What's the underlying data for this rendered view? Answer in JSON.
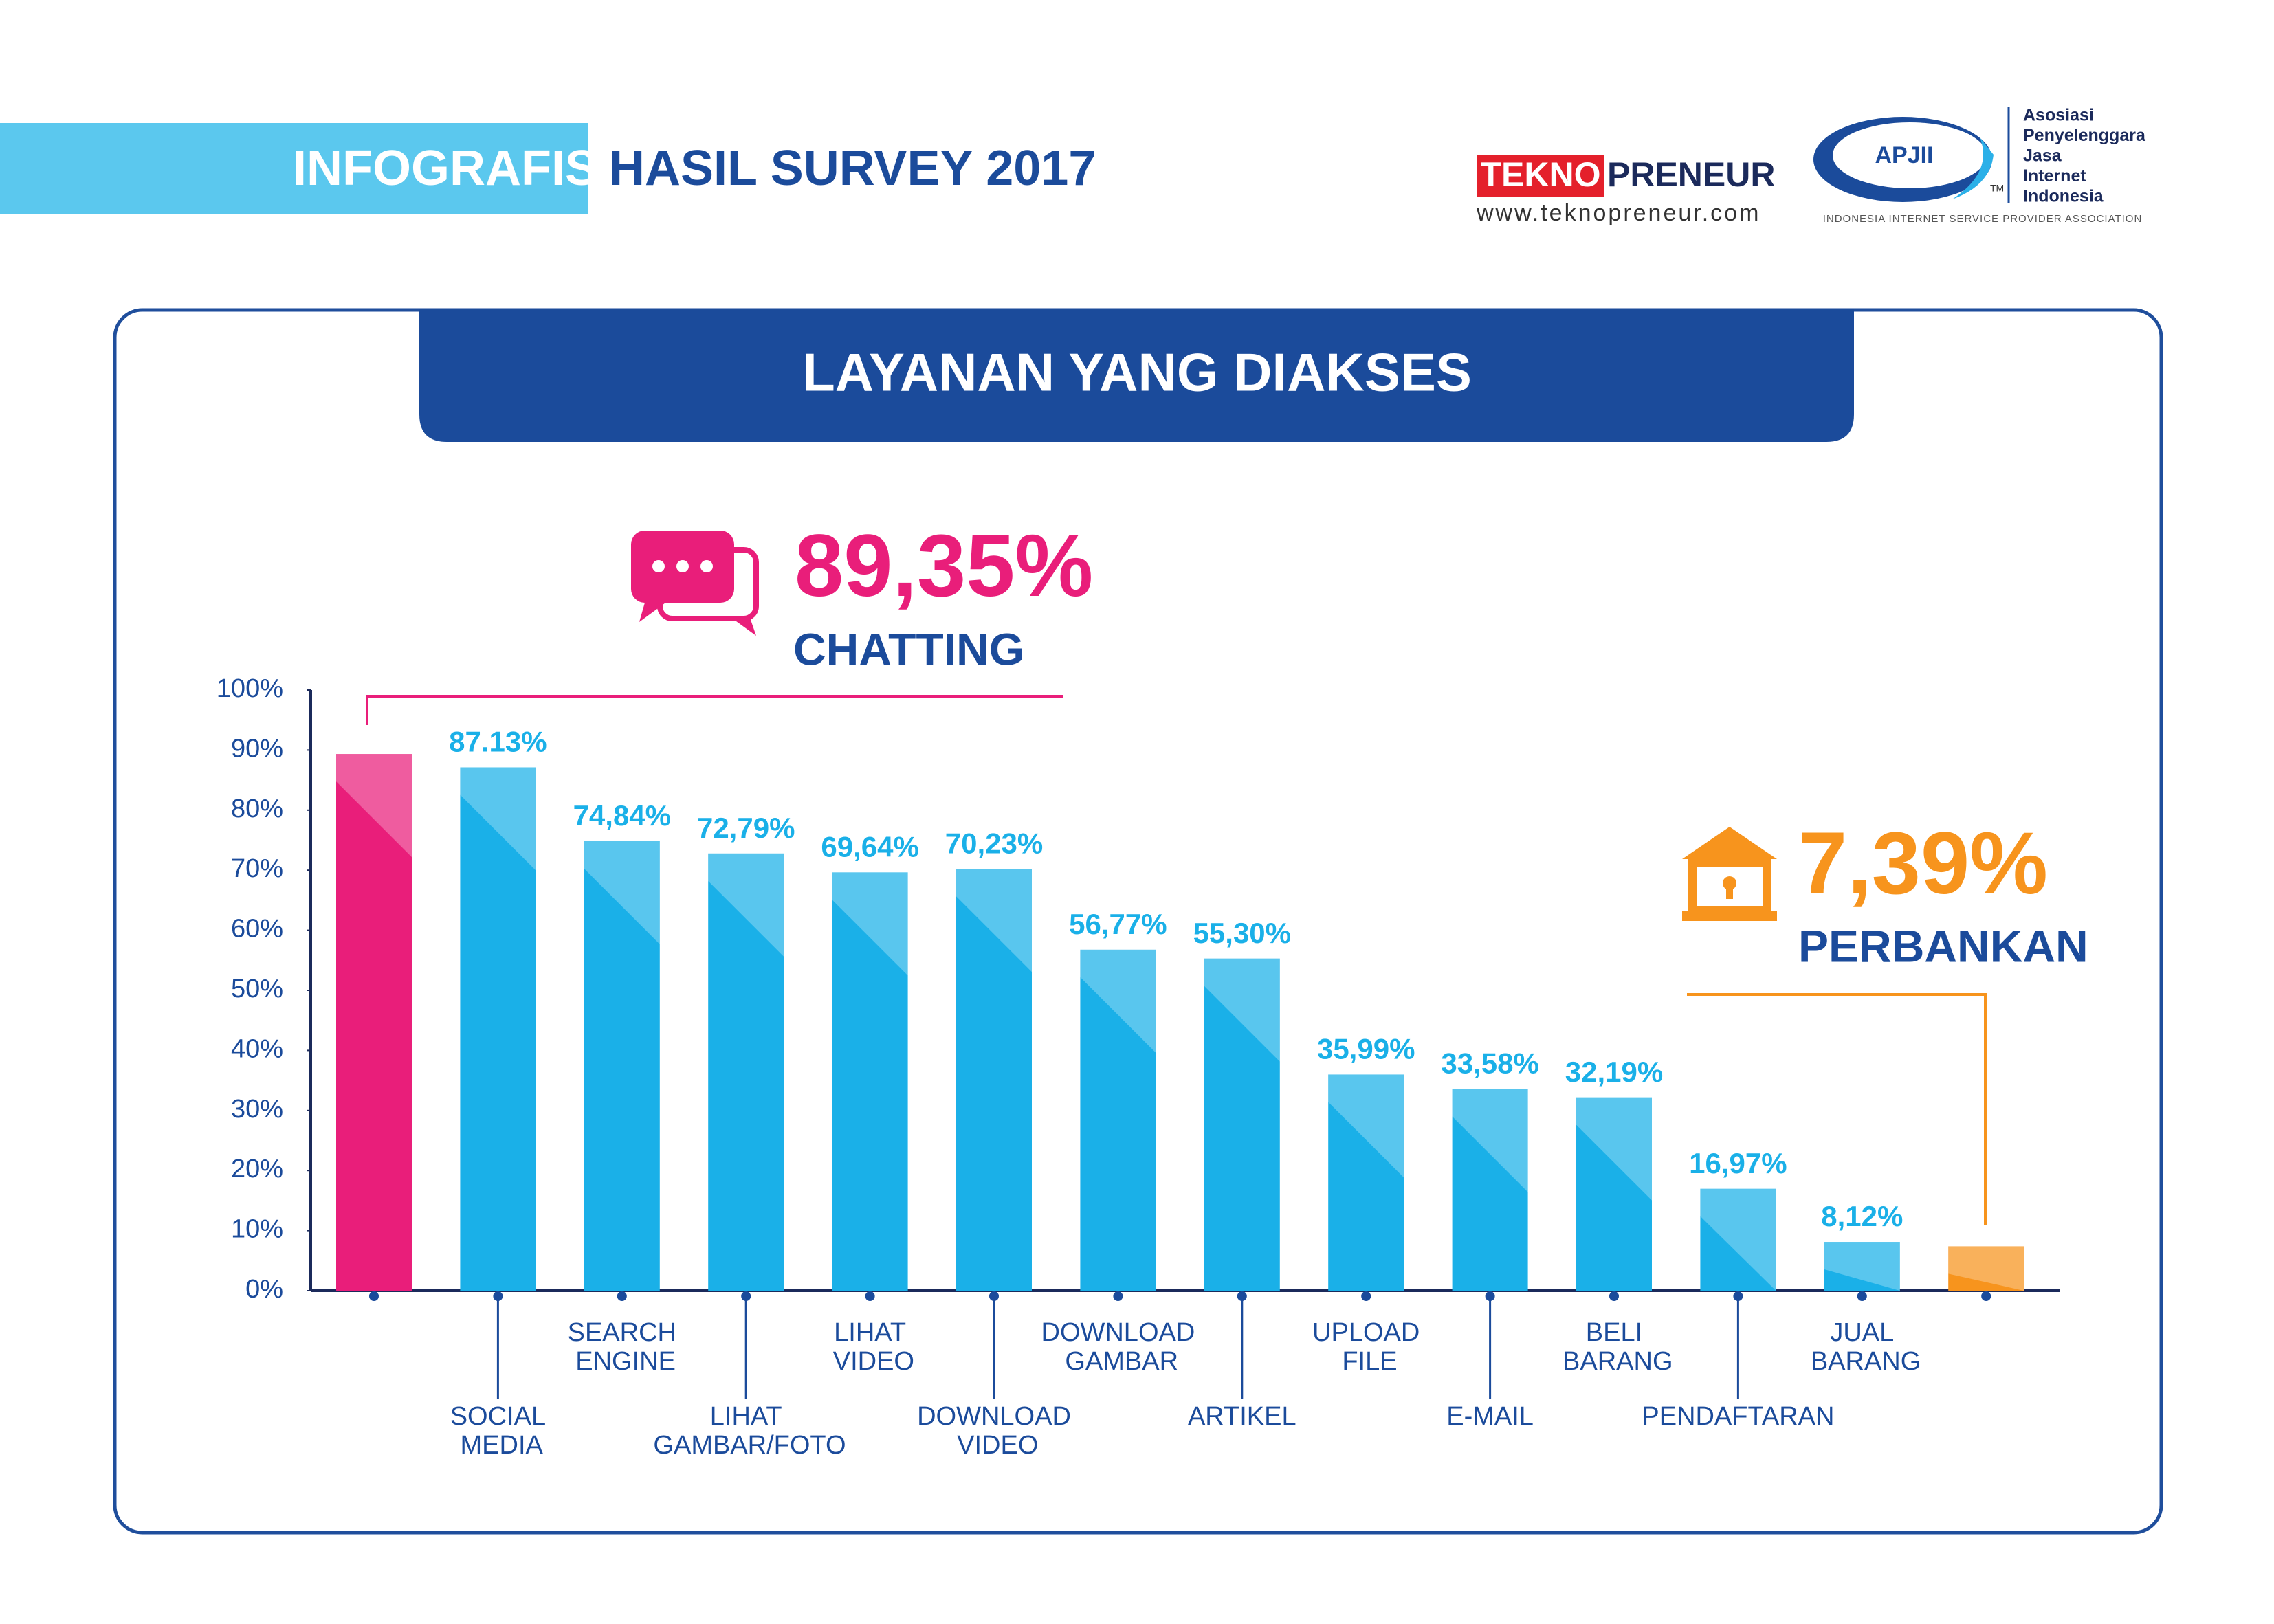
{
  "header": {
    "tag": "INFOGRAFIS",
    "title": "HASIL SURVEY 2017"
  },
  "logos": {
    "teknopreneur": {
      "part1": "TEKNO",
      "part2": "PRENEUR",
      "url": "www.teknopreneur.com"
    },
    "apjii": {
      "name": "APJII",
      "tm": "TM",
      "full_name": [
        "Asosiasi",
        "Penyelenggara",
        "Jasa",
        "Internet",
        "Indonesia"
      ],
      "tagline": "INDONESIA INTERNET SERVICE PROVIDER ASSOCIATION"
    }
  },
  "chart_data": {
    "type": "bar",
    "title": "LAYANAN YANG DIAKSES",
    "categories": [
      "CHATTING",
      "SOCIAL MEDIA",
      "SEARCH ENGINE",
      "LIHAT GAMBAR/FOTO",
      "LIHAT VIDEO",
      "DOWNLOAD VIDEO",
      "DOWNLOAD GAMBAR",
      "ARTIKEL",
      "UPLOAD FILE",
      "E-MAIL",
      "BELI BARANG",
      "PENDAFTARAN",
      "JUAL BARANG",
      "PERBANKAN"
    ],
    "values": [
      89.35,
      87.13,
      74.84,
      72.79,
      69.64,
      70.23,
      56.77,
      55.3,
      35.99,
      33.58,
      32.19,
      16.97,
      8.12,
      7.39
    ],
    "value_labels": [
      "89,35%",
      "87.13%",
      "74,84%",
      "72,79%",
      "69,64%",
      "70,23%",
      "56,77%",
      "55,30%",
      "35,99%",
      "33,58%",
      "32,19%",
      "16,97%",
      "8,12%",
      "7,39%"
    ],
    "colors": [
      "#e91e7a",
      "#1ab0e8",
      "#1ab0e8",
      "#1ab0e8",
      "#1ab0e8",
      "#1ab0e8",
      "#1ab0e8",
      "#1ab0e8",
      "#1ab0e8",
      "#1ab0e8",
      "#1ab0e8",
      "#1ab0e8",
      "#1ab0e8",
      "#f7941d"
    ],
    "ylim": [
      0,
      100
    ],
    "yticks": [
      {
        "value": 0,
        "label": "0%"
      },
      {
        "value": 10,
        "label": "10%"
      },
      {
        "value": 20,
        "label": "20%"
      },
      {
        "value": 30,
        "label": "30%"
      },
      {
        "value": 40,
        "label": "40%"
      },
      {
        "value": 50,
        "label": "50%"
      },
      {
        "value": 60,
        "label": "60%"
      },
      {
        "value": 70,
        "label": "70%"
      },
      {
        "value": 80,
        "label": "80%"
      },
      {
        "value": 90,
        "label": "90%"
      },
      {
        "value": 100,
        "label": "100%"
      }
    ]
  }
}
